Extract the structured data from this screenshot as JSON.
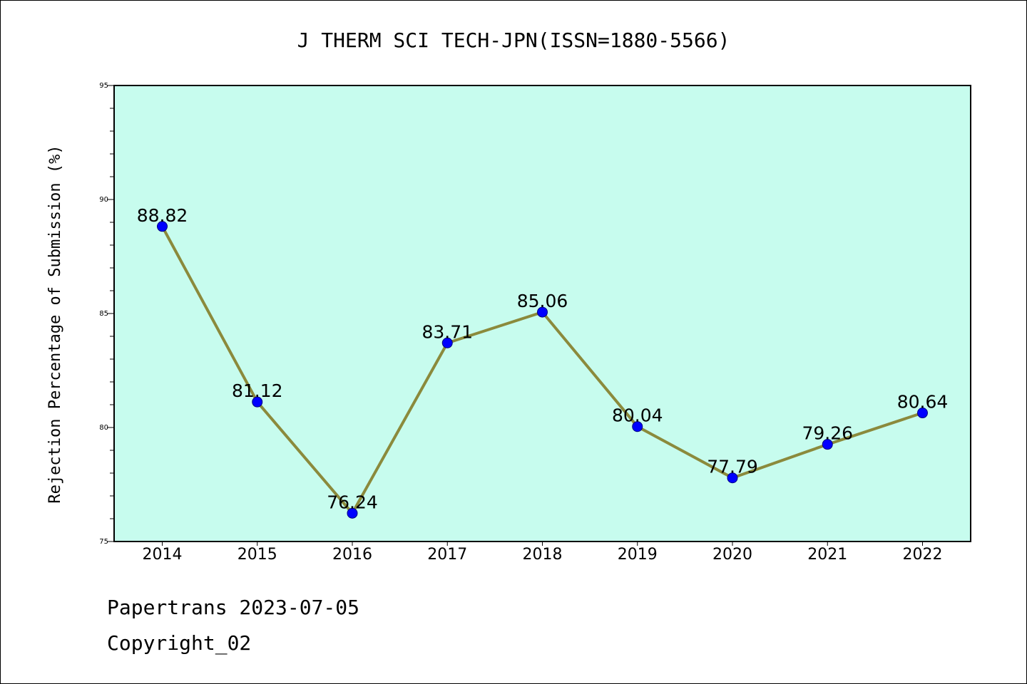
{
  "chart_data": {
    "type": "line",
    "title": "J THERM SCI TECH-JPN(ISSN=1880-5566)",
    "xlabel": "",
    "ylabel": "Rejection Percentage of Submission (%)",
    "categories": [
      "2014",
      "2015",
      "2016",
      "2017",
      "2018",
      "2019",
      "2020",
      "2021",
      "2022"
    ],
    "values": [
      88.82,
      81.12,
      76.24,
      83.71,
      85.06,
      80.04,
      77.79,
      79.26,
      80.64
    ],
    "data_labels": [
      "88.82",
      "81.12",
      "76.24",
      "83.71",
      "85.06",
      "80.04",
      "77.79",
      "79.26",
      "80.64"
    ],
    "ylim": [
      75,
      95
    ],
    "yticks": [
      75,
      80,
      85,
      90,
      95
    ],
    "grid": false,
    "colors": {
      "plot_background": "#c7fcee",
      "line": "#8b8a3c",
      "marker": "#0000ff",
      "marker_edge": "#000080"
    }
  },
  "footer": {
    "line1": "Papertrans 2023-07-05",
    "line2": "Copyright_02"
  }
}
